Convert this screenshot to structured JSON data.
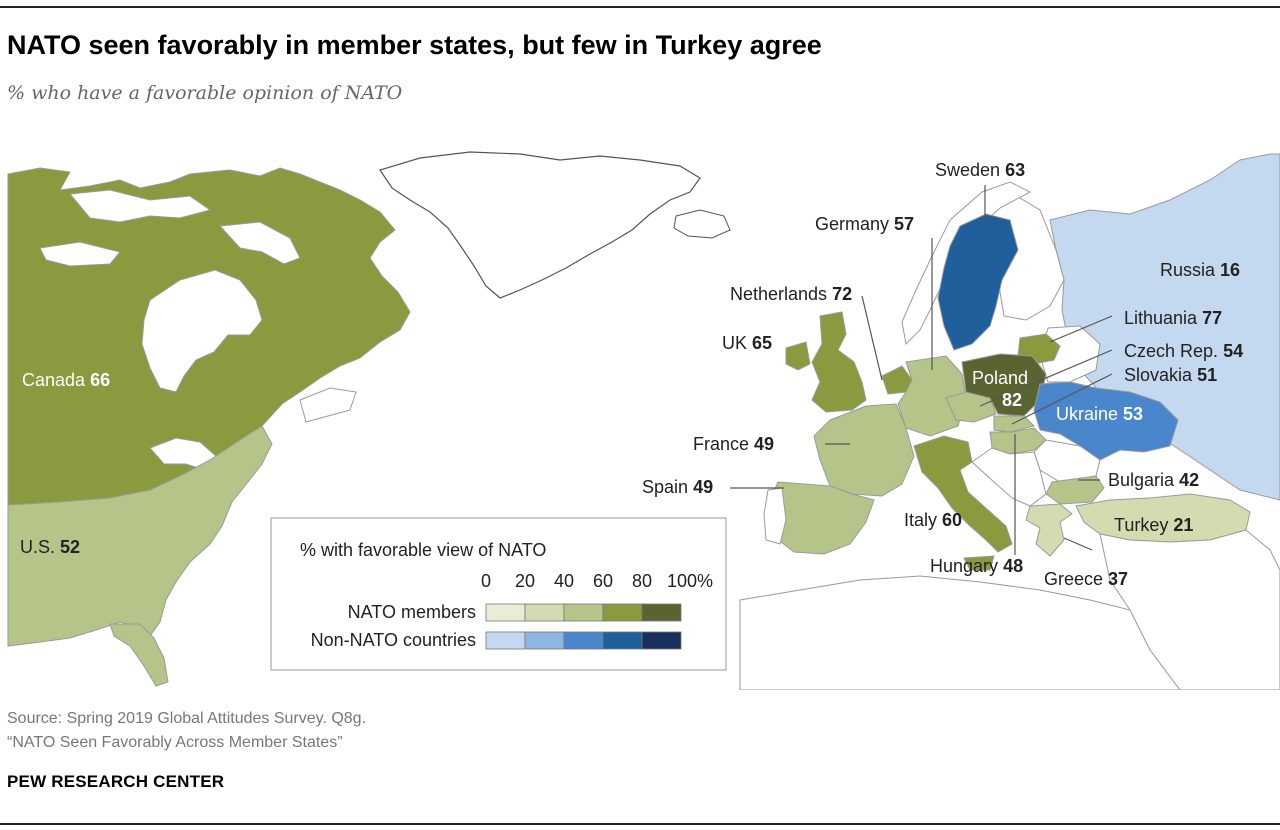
{
  "header": {
    "title": "NATO seen favorably in member states, but few in Turkey agree",
    "subtitle": "% who have a favorable opinion of NATO"
  },
  "colors": {
    "nato": [
      "#e8eed6",
      "#d3dcb0",
      "#b5c58a",
      "#8a9a3e",
      "#5a6430"
    ],
    "non_nato": [
      "#c4d8f0",
      "#8fb6e2",
      "#4a86cc",
      "#1e5f9c",
      "#17305c"
    ],
    "no_data_land": "#ffffff",
    "border": "#9a9a9a",
    "leader": "#555555"
  },
  "countries": [
    {
      "name": "Canada",
      "value": "66",
      "nato": true
    },
    {
      "name": "U.S.",
      "value": "52",
      "nato": true
    },
    {
      "name": "Sweden",
      "value": "63",
      "nato": false
    },
    {
      "name": "Germany",
      "value": "57",
      "nato": true
    },
    {
      "name": "Netherlands",
      "value": "72",
      "nato": true
    },
    {
      "name": "UK",
      "value": "65",
      "nato": true
    },
    {
      "name": "Russia",
      "value": "16",
      "nato": false
    },
    {
      "name": "Lithuania",
      "value": "77",
      "nato": true
    },
    {
      "name": "Czech Rep.",
      "value": "54",
      "nato": true
    },
    {
      "name": "Slovakia",
      "value": "51",
      "nato": true
    },
    {
      "name": "Poland",
      "value": "82",
      "nato": true
    },
    {
      "name": "Ukraine",
      "value": "53",
      "nato": false
    },
    {
      "name": "France",
      "value": "49",
      "nato": true
    },
    {
      "name": "Spain",
      "value": "49",
      "nato": true
    },
    {
      "name": "Italy",
      "value": "60",
      "nato": true
    },
    {
      "name": "Bulgaria",
      "value": "42",
      "nato": true
    },
    {
      "name": "Turkey",
      "value": "21",
      "nato": true
    },
    {
      "name": "Hungary",
      "value": "48",
      "nato": true
    },
    {
      "name": "Greece",
      "value": "37",
      "nato": true
    }
  ],
  "legend": {
    "title": "% with favorable view of NATO",
    "ticks": [
      "0",
      "20",
      "40",
      "60",
      "80",
      "100%"
    ],
    "rows": [
      "NATO members",
      "Non-NATO countries"
    ]
  },
  "footer": {
    "source": "Source: Spring 2019 Global Attitudes Survey. Q8g.",
    "report": "“NATO Seen Favorably Across Member States”",
    "brand": "PEW RESEARCH CENTER"
  }
}
